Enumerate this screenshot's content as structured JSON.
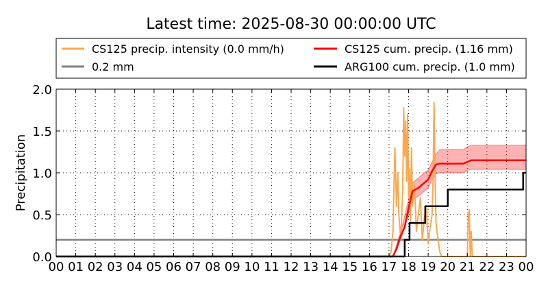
{
  "chart_data": {
    "type": "line",
    "title": "Latest time: 2025-08-30 00:00:00 UTC",
    "xlabel": "",
    "ylabel": "Precipitation",
    "xlim": [
      0,
      24
    ],
    "ylim": [
      0,
      2.0
    ],
    "x_ticks": [
      "00",
      "01",
      "02",
      "03",
      "04",
      "05",
      "06",
      "07",
      "08",
      "09",
      "10",
      "11",
      "12",
      "13",
      "14",
      "15",
      "16",
      "17",
      "18",
      "19",
      "20",
      "21",
      "22",
      "23",
      "00"
    ],
    "y_ticks": [
      "0.0",
      "0.5",
      "1.0",
      "1.5",
      "2.0"
    ],
    "grid": true,
    "legend_position": "top",
    "legend": [
      {
        "label": "CS125 precip. intensity (0.0 mm/h)",
        "color": "#ffa64d"
      },
      {
        "label": "CS125 cum. precip. (1.16 mm)",
        "color": "#ff0000"
      },
      {
        "label": "0.2 mm",
        "color": "#808080"
      },
      {
        "label": "ARG100 cum. precip. (1.0 mm)",
        "color": "#000000"
      }
    ],
    "series": [
      {
        "name": "CS125 precip. intensity (0.0 mm/h)",
        "color": "#ffa64d",
        "points": [
          [
            0,
            0
          ],
          [
            17.0,
            0
          ],
          [
            17.1,
            0.05
          ],
          [
            17.2,
            0.3
          ],
          [
            17.3,
            1.3
          ],
          [
            17.38,
            0.6
          ],
          [
            17.45,
            1.0
          ],
          [
            17.5,
            0.5
          ],
          [
            17.6,
            0.2
          ],
          [
            17.7,
            0.8
          ],
          [
            17.75,
            1.78
          ],
          [
            17.8,
            1.2
          ],
          [
            17.85,
            1.62
          ],
          [
            17.9,
            0.9
          ],
          [
            17.95,
            1.7
          ],
          [
            18.0,
            0.7
          ],
          [
            18.05,
            1.05
          ],
          [
            18.1,
            0.4
          ],
          [
            18.15,
            1.3
          ],
          [
            18.2,
            0.6
          ],
          [
            18.3,
            0.85
          ],
          [
            18.4,
            0.3
          ],
          [
            18.5,
            0.5
          ],
          [
            18.6,
            0.7
          ],
          [
            18.7,
            0.2
          ],
          [
            18.8,
            0.45
          ],
          [
            18.9,
            0.6
          ],
          [
            19.0,
            0.15
          ],
          [
            19.1,
            0.35
          ],
          [
            19.2,
            0.5
          ],
          [
            19.25,
            0.9
          ],
          [
            19.3,
            1.84
          ],
          [
            19.35,
            1.0
          ],
          [
            19.4,
            0.4
          ],
          [
            19.5,
            0.2
          ],
          [
            19.6,
            0.05
          ],
          [
            19.7,
            0
          ],
          [
            21.0,
            0
          ],
          [
            21.05,
            0.5
          ],
          [
            21.1,
            0.56
          ],
          [
            21.15,
            0
          ],
          [
            21.2,
            0.3
          ],
          [
            21.25,
            0
          ],
          [
            24,
            0
          ]
        ]
      },
      {
        "name": "CS125 cum. precip. (1.16 mm)",
        "color": "#ff0000",
        "points": [
          [
            0,
            0
          ],
          [
            17.2,
            0
          ],
          [
            17.4,
            0.1
          ],
          [
            17.6,
            0.25
          ],
          [
            17.8,
            0.35
          ],
          [
            18.0,
            0.58
          ],
          [
            18.2,
            0.78
          ],
          [
            18.5,
            0.82
          ],
          [
            18.8,
            0.88
          ],
          [
            19.0,
            0.92
          ],
          [
            19.2,
            1.02
          ],
          [
            19.4,
            1.1
          ],
          [
            19.6,
            1.11
          ],
          [
            20.8,
            1.11
          ],
          [
            21.0,
            1.13
          ],
          [
            21.2,
            1.15
          ],
          [
            24,
            1.15
          ]
        ],
        "band": [
          [
            17.2,
            0,
            0
          ],
          [
            17.6,
            0.2,
            0.3
          ],
          [
            18.0,
            0.5,
            0.68
          ],
          [
            18.2,
            0.68,
            0.88
          ],
          [
            18.5,
            0.72,
            0.94
          ],
          [
            18.8,
            0.78,
            1.0
          ],
          [
            19.0,
            0.82,
            1.03
          ],
          [
            19.2,
            0.92,
            1.13
          ],
          [
            19.4,
            0.99,
            1.22
          ],
          [
            19.6,
            1.0,
            1.28
          ],
          [
            20.8,
            1.0,
            1.28
          ],
          [
            21.0,
            1.03,
            1.31
          ],
          [
            21.2,
            1.04,
            1.33
          ],
          [
            24,
            1.04,
            1.33
          ]
        ]
      },
      {
        "name": "0.2 mm",
        "color": "#808080",
        "points": [
          [
            0,
            0.2
          ],
          [
            24,
            0.2
          ]
        ]
      },
      {
        "name": "ARG100 cum. precip. (1.0 mm)",
        "color": "#000000",
        "step": true,
        "points": [
          [
            0,
            0
          ],
          [
            17.8,
            0
          ],
          [
            17.8,
            0.2
          ],
          [
            18.05,
            0.2
          ],
          [
            18.05,
            0.4
          ],
          [
            18.85,
            0.4
          ],
          [
            18.85,
            0.6
          ],
          [
            20.0,
            0.6
          ],
          [
            20.0,
            0.8
          ],
          [
            23.85,
            0.8
          ],
          [
            23.85,
            1.0
          ],
          [
            24,
            1.0
          ]
        ]
      }
    ]
  }
}
